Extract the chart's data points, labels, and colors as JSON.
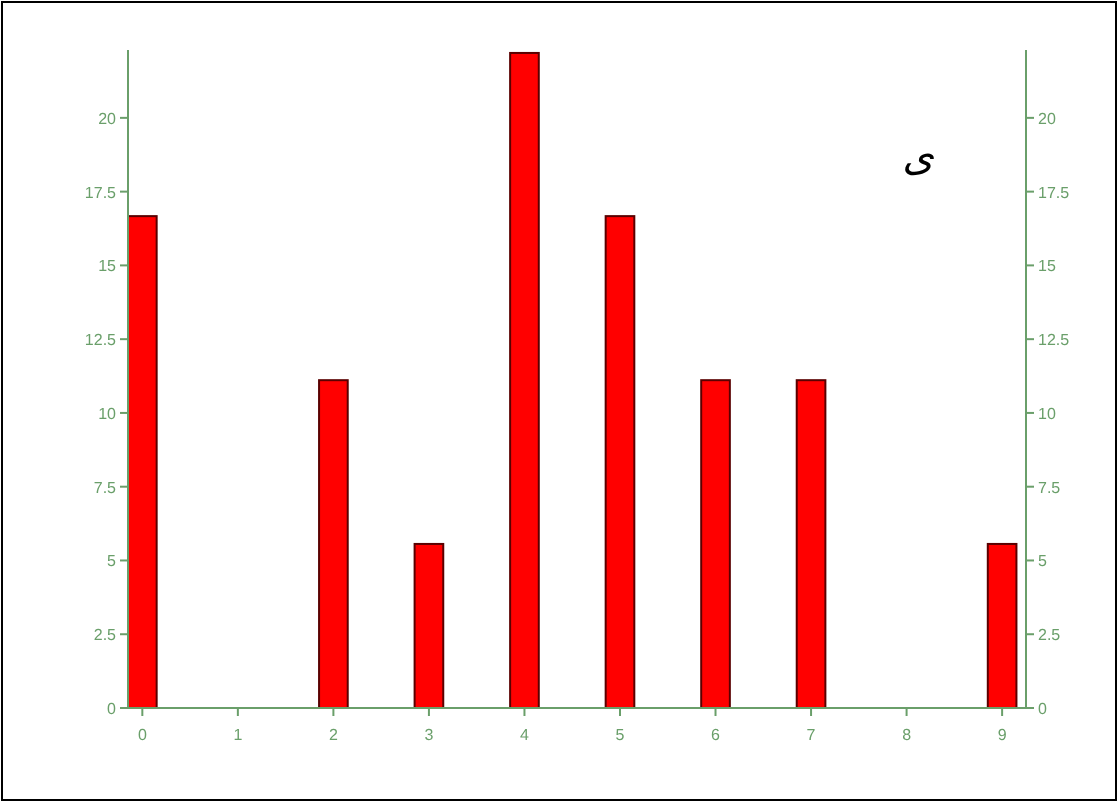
{
  "chart_data": {
    "type": "bar",
    "x": [
      0,
      1,
      2,
      3,
      4,
      5,
      6,
      7,
      8,
      9
    ],
    "values": [
      16.67,
      0,
      11.11,
      5.56,
      22.2,
      16.67,
      11.11,
      11.11,
      0,
      5.56
    ],
    "color": "#ff0000",
    "xlim": [
      -0.15,
      9.25
    ],
    "xticks": [
      0,
      1,
      2,
      3,
      4,
      5,
      6,
      7,
      8,
      9
    ],
    "ylim": [
      0,
      22.3
    ],
    "yticks": [
      0,
      2.5,
      5,
      7.5,
      10,
      12.5,
      15,
      17.5,
      20
    ],
    "y2lim": [
      0,
      22.3
    ],
    "y2ticks": [
      0,
      2.5,
      5,
      7.5,
      10,
      12.5,
      15,
      17.5,
      20
    ],
    "annotations": [
      "ی"
    ],
    "grid": false
  }
}
